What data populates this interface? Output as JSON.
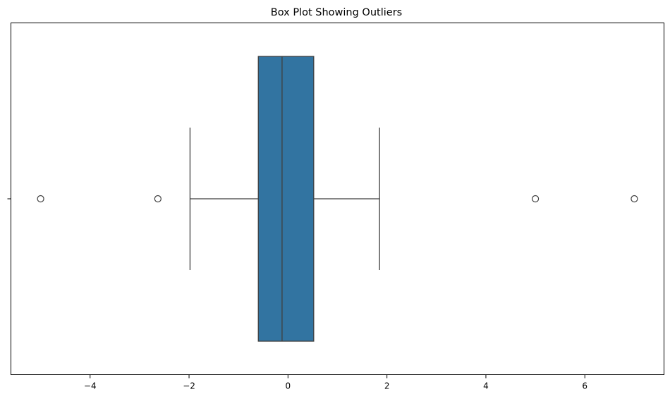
{
  "chart_data": {
    "type": "boxplot",
    "title": "Box Plot Showing Outliers",
    "xlabel": "",
    "ylabel": "",
    "orientation": "horizontal",
    "xlim": [
      -5.6,
      7.6
    ],
    "xticks": [
      -4,
      -2,
      0,
      2,
      4,
      6
    ],
    "xtick_labels": [
      "−4",
      "−2",
      "0",
      "2",
      "4",
      "6"
    ],
    "grid": false,
    "legend": "none",
    "series": [
      {
        "whisker_low": -1.98,
        "q1": -0.6,
        "median": -0.12,
        "q3": 0.52,
        "whisker_high": 1.85,
        "outliers": [
          -5.0,
          -2.63,
          5.0,
          7.0
        ]
      }
    ],
    "colors": {
      "box_fill": "#3274a1",
      "line": "#3f3f3f",
      "axis": "#000000"
    }
  }
}
